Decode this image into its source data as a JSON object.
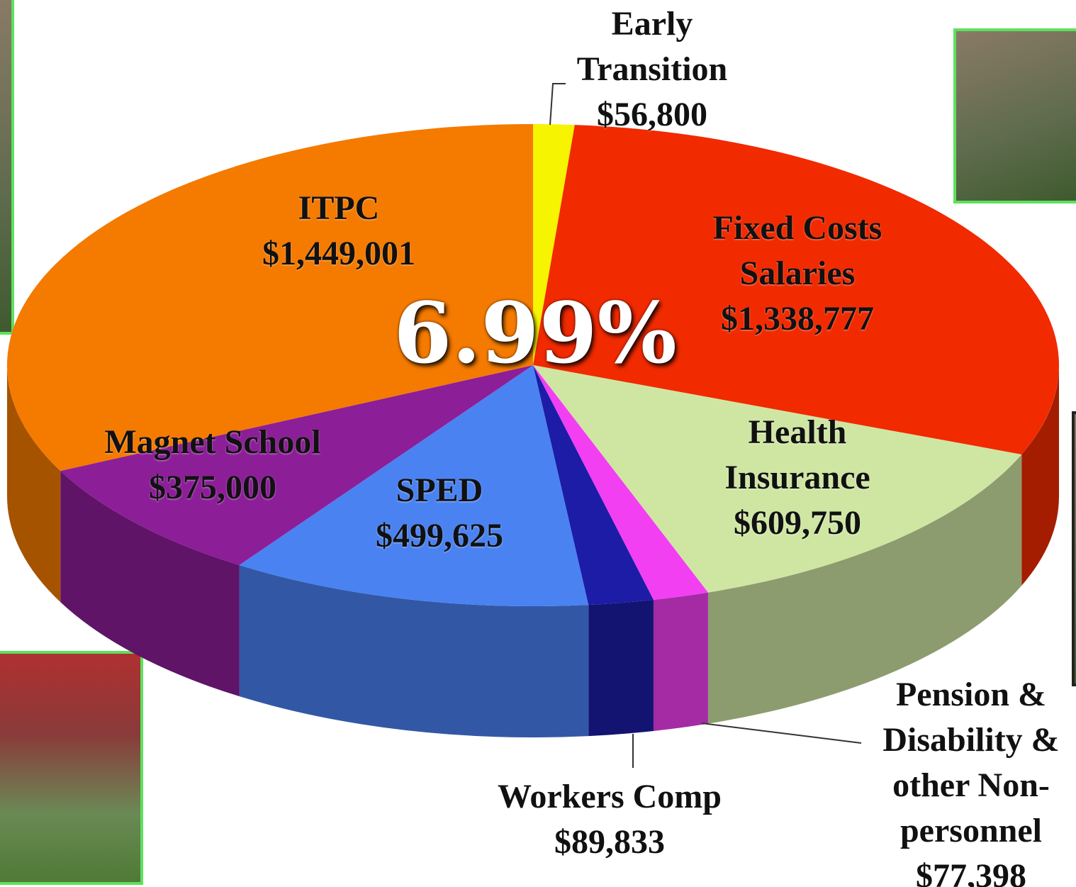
{
  "chart_data": {
    "type": "pie",
    "annotation": "6.99%",
    "categories": [
      "Early Transition",
      "Fixed Costs Salaries",
      "Health Insurance",
      "Pension & Disability & other Non-personnel",
      "Workers Comp",
      "SPED",
      "Magnet School",
      "ITPC"
    ],
    "values": [
      56800,
      1338777,
      609750,
      77398,
      89833,
      499625,
      375000,
      1449001
    ],
    "value_labels": [
      "$56,800",
      "$1,338,777",
      "$609,750",
      "$77,398",
      "$89,833",
      "$499,625",
      "$375,000",
      "$1,449,001"
    ],
    "colors": [
      "#f6f400",
      "#f12a00",
      "#cfe6a3",
      "#f23ff2",
      "#1c1ca6",
      "#4a82f2",
      "#8c1e98",
      "#f47a00"
    ]
  }
}
